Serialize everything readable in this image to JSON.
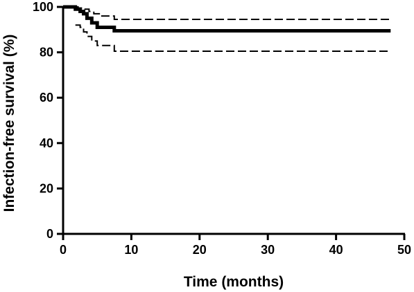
{
  "chart_data": {
    "type": "line",
    "title": "",
    "xlabel": "Time (months)",
    "ylabel": "Infection-free survival (%)",
    "xlim": [
      0,
      50
    ],
    "ylim": [
      0,
      100
    ],
    "x_ticks": [
      0,
      10,
      20,
      30,
      40,
      50
    ],
    "y_ticks": [
      0,
      20,
      40,
      60,
      80,
      100
    ],
    "x_tick_labels": [
      "0",
      "10",
      "20",
      "30",
      "40",
      "50"
    ],
    "y_tick_labels": [
      "0",
      "20",
      "40",
      "60",
      "80",
      "100"
    ],
    "grid": false,
    "legend": "none",
    "step": true,
    "series": [
      {
        "role": "estimate",
        "line_style": "solid",
        "color": "#000000",
        "x": [
          0,
          1.8,
          2.5,
          3.0,
          3.5,
          4.2,
          5.0,
          7.5,
          48
        ],
        "y": [
          100,
          99,
          98,
          97,
          95,
          93,
          91,
          89.5,
          89.5
        ]
      },
      {
        "role": "upper confidence limit",
        "line_style": "dashed",
        "color": "#000000",
        "x": [
          0,
          2.2,
          3.0,
          3.8,
          4.5,
          5.5,
          7.5,
          48
        ],
        "y": [
          100,
          99.5,
          99,
          98,
          97,
          96,
          94.5,
          94.5
        ]
      },
      {
        "role": "lower confidence limit",
        "line_style": "dashed",
        "color": "#000000",
        "x": [
          1.8,
          2.5,
          3.0,
          3.5,
          4.2,
          5.0,
          7.5,
          48
        ],
        "y": [
          92,
          91,
          89,
          87,
          85,
          83,
          80.5,
          80.5
        ]
      }
    ]
  }
}
